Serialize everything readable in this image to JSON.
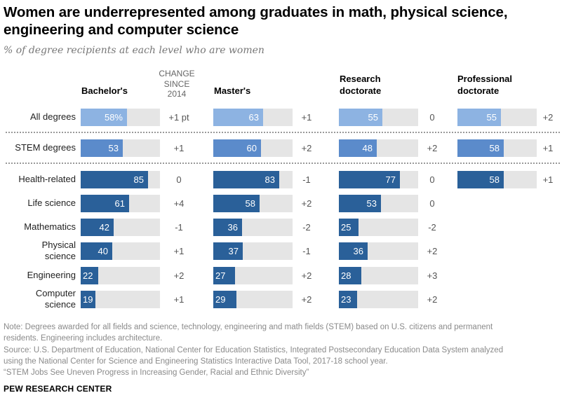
{
  "header": {
    "title": "Women are underrepresented among graduates in math, physical science, engineering and computer science",
    "subtitle": "% of degree recipients at each level who are women"
  },
  "columns": {
    "bachelors": "Bachelor's",
    "change_header": [
      "CHANGE",
      "SINCE",
      "2014"
    ],
    "masters": "Master's",
    "research": [
      "Research",
      "doctorate"
    ],
    "professional": [
      "Professional",
      "doctorate"
    ]
  },
  "colors": {
    "all_degrees": "#8db3e2",
    "stem_degrees": "#5b8bcb",
    "fields": "#2a6099",
    "track": "#e5e5e5"
  },
  "footer": {
    "note_lines": [
      "Note: Degrees awarded for all fields and science, technology, engineering and math fields (STEM) based on U.S. citizens and permanent",
      "residents. Engineering includes architecture.",
      "Source: U.S. Department of Education, National Center for Education Statistics, Integrated Postsecondary Education Data System analyzed",
      "using the National Center for Science and Engineering Statistics Interactive Data Tool, 2017-18 school year.",
      "“STEM Jobs See Uneven Progress in Increasing Gender, Racial and Ethnic Diversity”"
    ],
    "brand": "PEW RESEARCH CENTER"
  },
  "chart_data": {
    "type": "bar",
    "title": "Women are underrepresented among graduates in math, physical science, engineering and computer science",
    "subtitle": "% of degree recipients at each level who are women",
    "orientation": "horizontal",
    "xlim": [
      0,
      100
    ],
    "units": "%",
    "change_label": "Change since 2014",
    "categories": [
      "All degrees",
      "STEM degrees",
      "Health-related",
      "Life science",
      "Mathematics",
      "Physical science",
      "Engineering",
      "Computer science"
    ],
    "category_lines": [
      [
        "All degrees"
      ],
      [
        "STEM degrees"
      ],
      [
        "Health-related"
      ],
      [
        "Life science"
      ],
      [
        "Mathematics"
      ],
      [
        "Physical",
        "science"
      ],
      [
        "Engineering"
      ],
      [
        "Computer",
        "science"
      ]
    ],
    "series": [
      {
        "name": "Bachelor's",
        "values": [
          58,
          53,
          85,
          61,
          42,
          40,
          22,
          19
        ],
        "labels": [
          "58%",
          "53",
          "85",
          "61",
          "42",
          "40",
          "22",
          "19"
        ],
        "change": [
          "+1 pt",
          "+1",
          "0",
          "+4",
          "-1",
          "+1",
          "+2",
          "+1"
        ]
      },
      {
        "name": "Master's",
        "values": [
          63,
          60,
          83,
          58,
          36,
          37,
          27,
          29
        ],
        "labels": [
          "63",
          "60",
          "83",
          "58",
          "36",
          "37",
          "27",
          "29"
        ],
        "change": [
          "+1",
          "+2",
          "-1",
          "+2",
          "-2",
          "-1",
          "+2",
          "+2"
        ]
      },
      {
        "name": "Research doctorate",
        "values": [
          55,
          48,
          77,
          53,
          25,
          36,
          28,
          23
        ],
        "labels": [
          "55",
          "48",
          "77",
          "53",
          "25",
          "36",
          "28",
          "23"
        ],
        "change": [
          "0",
          "+2",
          "0",
          "0",
          "-2",
          "+2",
          "+3",
          "+2"
        ]
      },
      {
        "name": "Professional doctorate",
        "values": [
          55,
          58,
          58,
          null,
          null,
          null,
          null,
          null
        ],
        "labels": [
          "55",
          "58",
          "58",
          null,
          null,
          null,
          null,
          null
        ],
        "change": [
          "+2",
          "+1",
          "+1",
          null,
          null,
          null,
          null,
          null
        ]
      }
    ],
    "legend": "none",
    "grid": false
  }
}
